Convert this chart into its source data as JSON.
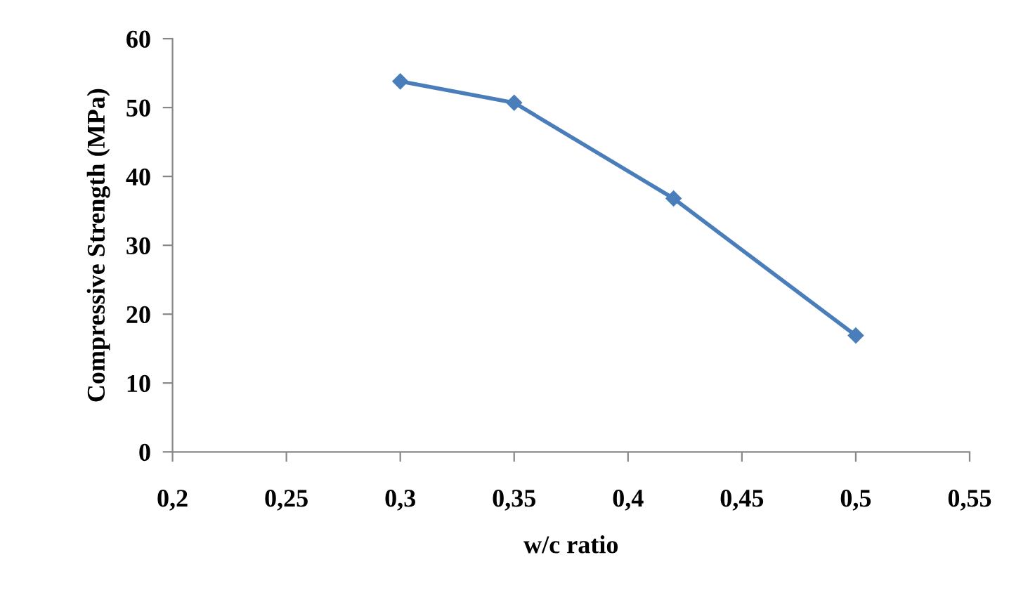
{
  "chart_data": {
    "type": "line",
    "xlabel": "w/c ratio",
    "ylabel": "Compressive Strength (MPa)",
    "x": [
      0.3,
      0.35,
      0.42,
      0.5
    ],
    "series": [
      {
        "color": "#4a7ebb",
        "values": [
          53.8,
          50.7,
          36.8,
          16.9
        ]
      }
    ],
    "xlim": [
      0.2,
      0.55
    ],
    "xticks": [
      {
        "value": 0.2,
        "label": "0,2"
      },
      {
        "value": 0.25,
        "label": "0,25"
      },
      {
        "value": 0.3,
        "label": "0,3"
      },
      {
        "value": 0.35,
        "label": "0,35"
      },
      {
        "value": 0.4,
        "label": "0,4"
      },
      {
        "value": 0.45,
        "label": "0,45"
      },
      {
        "value": 0.5,
        "label": "0,5"
      },
      {
        "value": 0.55,
        "label": "0,55"
      }
    ],
    "ylim": [
      0,
      60
    ],
    "yticks": [
      0,
      10,
      20,
      30,
      40,
      50,
      60
    ],
    "grid": false,
    "legend": false,
    "marker": "diamond",
    "line_style": "solid"
  }
}
